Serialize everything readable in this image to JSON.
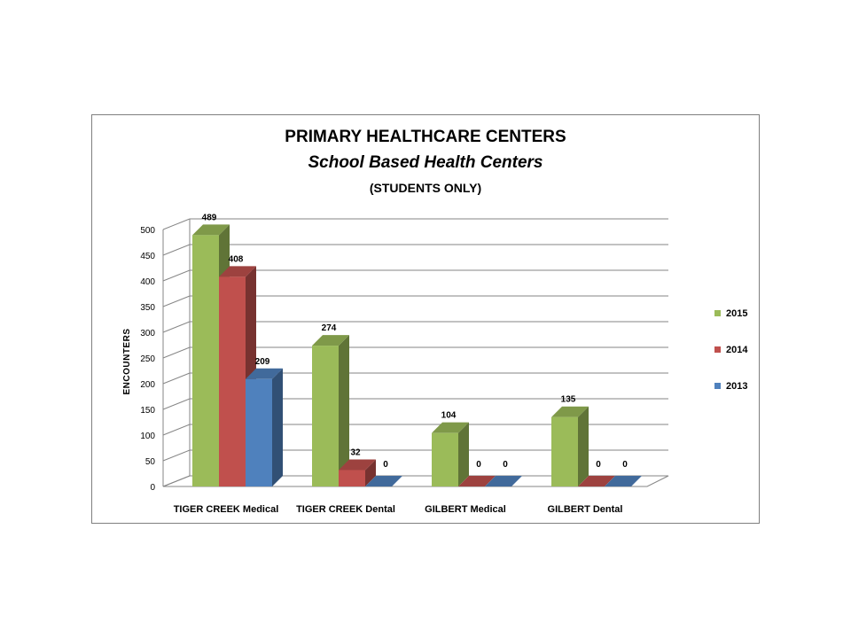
{
  "chart_data": {
    "type": "bar",
    "title": "PRIMARY HEALTHCARE CENTERS",
    "subtitle": "School Based Health Centers",
    "subtitle2": "(STUDENTS ONLY)",
    "ylabel": "ENCOUNTERS",
    "ylim": [
      0,
      500
    ],
    "yticks": [
      "0",
      "50",
      "100",
      "150",
      "200",
      "250",
      "300",
      "350",
      "400",
      "450",
      "500"
    ],
    "categories": [
      "TIGER CREEK Medical",
      "TIGER CREEK Dental",
      "GILBERT Medical",
      "GILBERT Dental"
    ],
    "series": [
      {
        "name": "2015",
        "values": [
          489,
          274,
          104,
          135
        ],
        "color": "#9bbb59"
      },
      {
        "name": "2014",
        "values": [
          408,
          32,
          0,
          0
        ],
        "color": "#c0504d"
      },
      {
        "name": "2013",
        "values": [
          209,
          0,
          0,
          0
        ],
        "color": "#4f81bd"
      }
    ],
    "data_labels": [
      [
        "489",
        "274",
        "104",
        "135"
      ],
      [
        "408",
        "32",
        "0",
        "0"
      ],
      [
        "209",
        "0",
        "0",
        "0"
      ]
    ],
    "legend_position": "right",
    "grid": true,
    "style": "3d-clustered-column"
  }
}
